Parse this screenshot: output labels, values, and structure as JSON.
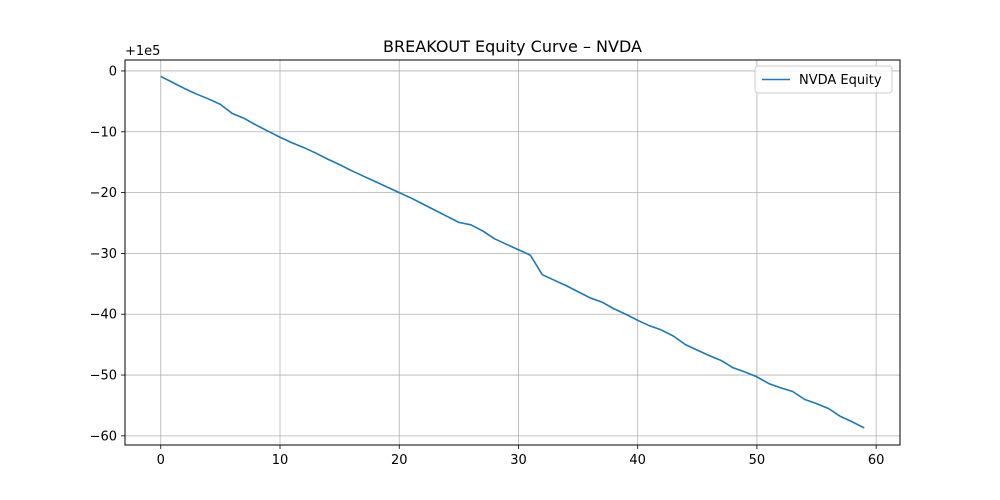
{
  "chart_data": {
    "type": "line",
    "title": "BREAKOUT Equity Curve – NVDA",
    "xlabel": "",
    "ylabel": "",
    "offset_text": "+1e5",
    "xlim": [
      -3,
      62
    ],
    "ylim": [
      -61.5,
      1.8
    ],
    "x_ticks": [
      0,
      10,
      20,
      30,
      40,
      50,
      60
    ],
    "x_tick_labels": [
      "0",
      "10",
      "20",
      "30",
      "40",
      "50",
      "60"
    ],
    "y_ticks": [
      0,
      -10,
      -20,
      -30,
      -40,
      -50,
      -60
    ],
    "y_tick_labels": [
      "0",
      "−10",
      "−20",
      "−30",
      "−40",
      "−50",
      "−60"
    ],
    "grid": true,
    "legend": {
      "position": "top-right",
      "entries": [
        "NVDA Equity"
      ]
    },
    "colors": {
      "series": "#1f77b4",
      "grid": "#b0b0b0",
      "axes": "#000000"
    },
    "series": [
      {
        "name": "NVDA Equity",
        "x": [
          0,
          1,
          2,
          3,
          4,
          5,
          6,
          7,
          8,
          9,
          10,
          11,
          12,
          13,
          14,
          15,
          16,
          17,
          18,
          19,
          20,
          21,
          22,
          23,
          24,
          25,
          26,
          27,
          28,
          29,
          30,
          31,
          32,
          33,
          34,
          35,
          36,
          37,
          38,
          39,
          40,
          41,
          42,
          43,
          44,
          45,
          46,
          47,
          48,
          49,
          50,
          51,
          52,
          53,
          54,
          55,
          56,
          57,
          58,
          59
        ],
        "y": [
          -0.9,
          -1.9,
          -2.9,
          -3.8,
          -4.6,
          -5.5,
          -7.0,
          -7.8,
          -8.9,
          -9.9,
          -10.9,
          -11.8,
          -12.6,
          -13.5,
          -14.5,
          -15.4,
          -16.4,
          -17.3,
          -18.2,
          -19.1,
          -20.0,
          -20.9,
          -21.9,
          -22.9,
          -23.9,
          -24.9,
          -25.3,
          -26.3,
          -27.6,
          -28.5,
          -29.4,
          -30.3,
          -33.5,
          -34.4,
          -35.3,
          -36.3,
          -37.3,
          -38.0,
          -39.1,
          -40.0,
          -41.0,
          -41.9,
          -42.6,
          -43.6,
          -45.0,
          -45.9,
          -46.8,
          -47.6,
          -48.8,
          -49.5,
          -50.3,
          -51.4,
          -52.1,
          -52.7,
          -54.0,
          -54.7,
          -55.5,
          -56.8,
          -57.7,
          -58.7
        ]
      }
    ]
  }
}
